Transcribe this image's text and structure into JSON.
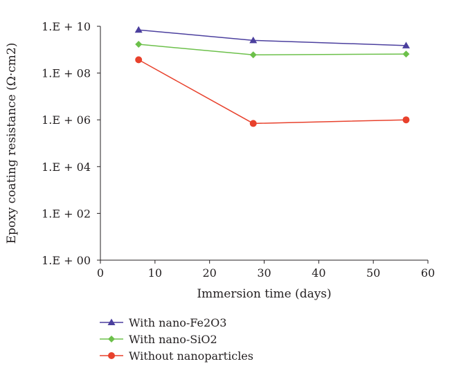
{
  "chart_data": {
    "type": "line",
    "xlabel": "Immersion time (days)",
    "ylabel": "Epoxy coating resistance (Ω·cm2)",
    "xlim": [
      0,
      60
    ],
    "ylim": [
      1,
      10000000000
    ],
    "y_scale": "log",
    "x_ticks": [
      0,
      10,
      20,
      30,
      40,
      50,
      60
    ],
    "x_tick_labels": [
      "0",
      "10",
      "20",
      "30",
      "40",
      "50",
      "60"
    ],
    "y_ticks": [
      1,
      100,
      10000,
      1000000,
      100000000,
      10000000000
    ],
    "y_tick_labels": [
      "1.E + 00",
      "1.E + 02",
      "1.E + 04",
      "1.E + 06",
      "1.E + 08",
      "1.E + 10"
    ],
    "grid": false,
    "legend_position": "bottom-left",
    "series": [
      {
        "name": "With nano-Fe2O3",
        "color": "#4b3f9e",
        "marker": "triangle",
        "x": [
          7,
          28,
          56
        ],
        "y": [
          7000000000,
          2500000000,
          1500000000
        ]
      },
      {
        "name": "With nano-SiO2",
        "color": "#6cc04a",
        "marker": "diamond",
        "x": [
          7,
          28,
          56
        ],
        "y": [
          1700000000,
          600000000,
          650000000
        ]
      },
      {
        "name": "Without nanoparticles",
        "color": "#e8412c",
        "marker": "circle",
        "x": [
          7,
          28,
          56
        ],
        "y": [
          370000000,
          700000,
          1000000
        ]
      }
    ]
  }
}
